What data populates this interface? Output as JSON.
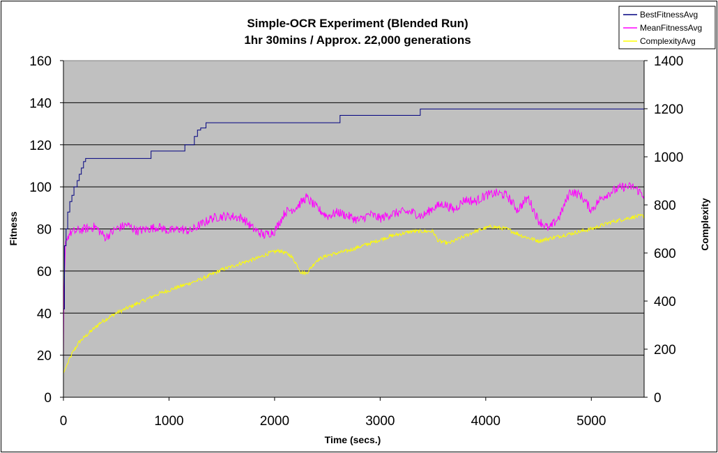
{
  "chart_data": {
    "type": "line",
    "title": "Simple-OCR Experiment (Blended Run)",
    "subtitle": "1hr 30mins / Approx. 22,000 generations",
    "xlabel": "Time (secs.)",
    "ylabel": "Fitness",
    "y2label": "Complexity",
    "xlim": [
      0,
      5500
    ],
    "ylim": [
      0,
      160
    ],
    "y2lim": [
      0,
      1400
    ],
    "x_ticks": [
      "0",
      "1000",
      "2000",
      "3000",
      "4000",
      "5000"
    ],
    "y_ticks": [
      "0",
      "20",
      "40",
      "60",
      "80",
      "100",
      "120",
      "140",
      "160"
    ],
    "y2_ticks": [
      "0",
      "200",
      "400",
      "600",
      "800",
      "1000",
      "1200",
      "1400"
    ],
    "grid": true,
    "legend_position": "top-right",
    "colors": {
      "plot_bg": "#c0c0c0",
      "best": "#000080",
      "mean": "#ff00ff",
      "complexity": "#ffff00"
    },
    "series": [
      {
        "name": "BestFitnessAvg",
        "axis": "left",
        "step": true,
        "x": [
          0,
          10,
          25,
          40,
          60,
          80,
          100,
          130,
          150,
          170,
          190,
          210,
          830,
          1150,
          1240,
          1270,
          1300,
          1350,
          2620,
          3380,
          5500
        ],
        "y": [
          42,
          72,
          80,
          88,
          93,
          96,
          100,
          103,
          106,
          109,
          112,
          113.5,
          117,
          120,
          124,
          127,
          128,
          130.5,
          134,
          137,
          137
        ]
      },
      {
        "name": "MeanFitnessAvg",
        "axis": "left",
        "noise": 2.2,
        "x": [
          0,
          5,
          20,
          60,
          120,
          200,
          300,
          400,
          500,
          600,
          700,
          800,
          900,
          1000,
          1100,
          1200,
          1300,
          1400,
          1500,
          1600,
          1700,
          1800,
          1900,
          2000,
          2100,
          2200,
          2300,
          2400,
          2500,
          2600,
          2700,
          2800,
          2900,
          3000,
          3100,
          3200,
          3300,
          3400,
          3500,
          3600,
          3700,
          3800,
          3900,
          4000,
          4100,
          4200,
          4300,
          4400,
          4500,
          4600,
          4700,
          4800,
          4900,
          5000,
          5100,
          5200,
          5300,
          5400,
          5500
        ],
        "y": [
          18,
          50,
          74,
          78,
          79,
          80,
          81,
          76,
          80,
          82,
          79,
          80,
          81,
          79,
          80,
          79,
          82,
          85,
          86,
          86,
          85,
          80,
          77,
          79,
          88,
          90,
          95,
          90,
          86,
          88,
          86,
          84,
          87,
          85,
          87,
          88,
          88,
          86,
          90,
          92,
          89,
          94,
          93,
          96,
          97,
          96,
          89,
          95,
          84,
          80,
          86,
          98,
          96,
          89,
          95,
          98,
          100,
          100,
          96
        ]
      },
      {
        "name": "ComplexityAvg",
        "axis": "right",
        "noise": 8,
        "x": [
          0,
          30,
          80,
          150,
          250,
          350,
          500,
          700,
          900,
          1100,
          1300,
          1500,
          1700,
          1850,
          1950,
          2050,
          2150,
          2200,
          2250,
          2300,
          2400,
          2500,
          2700,
          2900,
          3100,
          3300,
          3500,
          3550,
          3650,
          3750,
          3900,
          4050,
          4200,
          4350,
          4500,
          4600,
          4800,
          5000,
          5200,
          5400,
          5500
        ],
        "y": [
          100,
          130,
          180,
          230,
          270,
          310,
          350,
          390,
          430,
          460,
          490,
          530,
          560,
          580,
          600,
          610,
          590,
          560,
          520,
          515,
          570,
          590,
          610,
          640,
          670,
          690,
          690,
          650,
          640,
          660,
          690,
          710,
          700,
          670,
          650,
          660,
          680,
          700,
          730,
          750,
          755
        ]
      }
    ]
  }
}
